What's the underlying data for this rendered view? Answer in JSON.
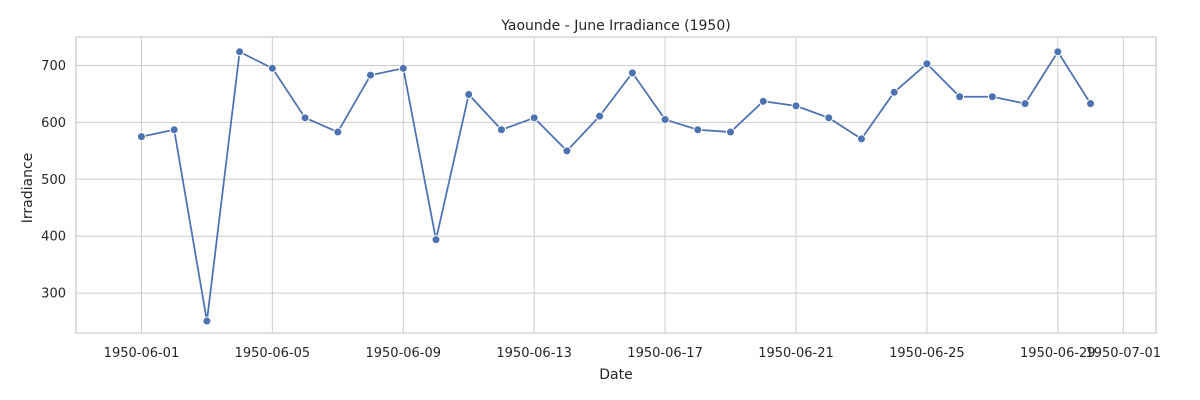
{
  "chart_data": {
    "type": "line",
    "title": "Yaounde - June Irradiance (1950)",
    "xlabel": "Date",
    "ylabel": "Irradiance",
    "ylim": [
      230,
      750
    ],
    "yticks": [
      300,
      400,
      500,
      600,
      700
    ],
    "xlim": [
      "1950-05-30",
      "1950-07-02"
    ],
    "xticks": [
      "1950-06-01",
      "1950-06-05",
      "1950-06-09",
      "1950-06-13",
      "1950-06-17",
      "1950-06-21",
      "1950-06-25",
      "1950-06-29",
      "1950-07-01"
    ],
    "grid": true,
    "series": [
      {
        "name": "Irradiance",
        "color": "#4c72b0",
        "marker": "circle",
        "x": [
          "1950-06-01",
          "1950-06-02",
          "1950-06-03",
          "1950-06-04",
          "1950-06-05",
          "1950-06-06",
          "1950-06-07",
          "1950-06-08",
          "1950-06-09",
          "1950-06-10",
          "1950-06-11",
          "1950-06-12",
          "1950-06-13",
          "1950-06-14",
          "1950-06-15",
          "1950-06-16",
          "1950-06-17",
          "1950-06-18",
          "1950-06-19",
          "1950-06-20",
          "1950-06-21",
          "1950-06-22",
          "1950-06-23",
          "1950-06-24",
          "1950-06-25",
          "1950-06-26",
          "1950-06-27",
          "1950-06-28",
          "1950-06-29",
          "1950-06-30"
        ],
        "values": [
          575,
          587,
          251,
          724,
          695,
          608,
          583,
          683,
          695,
          394,
          649,
          587,
          608,
          550,
          611,
          687,
          605,
          587,
          583,
          637,
          629,
          608,
          571,
          653,
          703,
          645,
          645,
          633,
          724,
          633
        ]
      }
    ]
  }
}
